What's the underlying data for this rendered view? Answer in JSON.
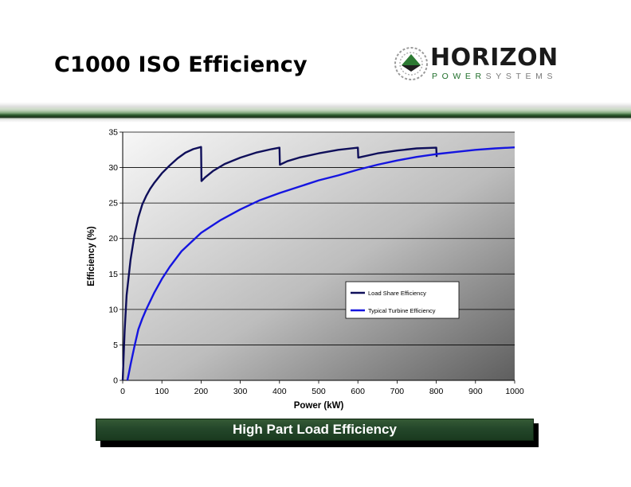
{
  "slide": {
    "title": "C1000 ISO Efficiency",
    "footer": "High Part Load Efficiency"
  },
  "logo": {
    "word": "HORIZON",
    "sub_highlight": "POWER",
    "sub_rest": "SYSTEMS",
    "colors": {
      "dark": "#1a1a1a",
      "green": "#1f6e2a",
      "gray": "#8a8a8a"
    }
  },
  "colors": {
    "load_share": "#0f0f5a",
    "typical": "#1515e0",
    "banner": "#1e4a22",
    "footer_bg": "#24472a"
  },
  "chart_data": {
    "type": "line",
    "xlabel": "Power (kW)",
    "ylabel": "Efficiency (%)",
    "xlim": [
      0,
      1000
    ],
    "ylim": [
      0,
      35
    ],
    "xticks": [
      0,
      100,
      200,
      300,
      400,
      500,
      600,
      700,
      800,
      900,
      1000
    ],
    "yticks": [
      0,
      5,
      10,
      15,
      20,
      25,
      30,
      35
    ],
    "grid": "horizontal",
    "legend_position": "center-right",
    "series": [
      {
        "name": "Load Share Efficiency",
        "x": [
          0,
          5,
          10,
          20,
          30,
          40,
          50,
          60,
          70,
          80,
          100,
          120,
          140,
          160,
          180,
          200,
          201,
          210,
          230,
          260,
          300,
          340,
          380,
          400,
          401,
          420,
          450,
          500,
          550,
          600,
          601,
          650,
          700,
          750,
          800,
          801
        ],
        "y": [
          0,
          7,
          12,
          17,
          20.5,
          23,
          24.8,
          26,
          27,
          27.8,
          29.2,
          30.3,
          31.3,
          32.1,
          32.6,
          32.9,
          28.1,
          28.6,
          29.5,
          30.5,
          31.4,
          32.1,
          32.6,
          32.8,
          30.4,
          30.9,
          31.4,
          32.0,
          32.5,
          32.8,
          31.4,
          32.0,
          32.4,
          32.7,
          32.8,
          31.5
        ]
      },
      {
        "name": "Typical Turbine Efficiency",
        "x": [
          12,
          15,
          20,
          25,
          30,
          40,
          50,
          60,
          80,
          100,
          120,
          150,
          200,
          250,
          300,
          350,
          400,
          450,
          500,
          550,
          600,
          650,
          700,
          750,
          800,
          850,
          900,
          950,
          1000
        ],
        "y": [
          0,
          0.8,
          2.2,
          3.5,
          4.8,
          7.2,
          8.7,
          10.0,
          12.3,
          14.3,
          16.0,
          18.2,
          20.8,
          22.6,
          24.1,
          25.4,
          26.4,
          27.3,
          28.2,
          28.9,
          29.7,
          30.4,
          31.0,
          31.5,
          31.9,
          32.2,
          32.5,
          32.7,
          32.85
        ]
      }
    ]
  }
}
